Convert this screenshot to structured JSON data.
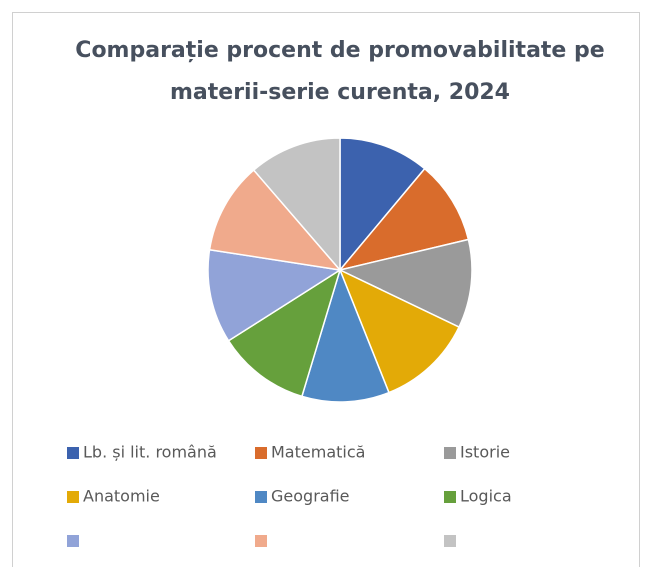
{
  "chart_data": {
    "type": "pie",
    "title": "Comparație procent de promovabilitate pe materii-serie curenta, 2024",
    "categories": [
      "Lb. și lit. română",
      "Matematică",
      "Istorie",
      "Anatomie",
      "Geografie",
      "Logica",
      null,
      null,
      null
    ],
    "values": [
      88,
      81,
      86,
      94,
      85,
      90,
      91,
      89,
      90
    ],
    "colors": [
      "#3c62ae",
      "#d96c2c",
      "#9a9a9a",
      "#e3aa07",
      "#4f88c4",
      "#66a03c",
      "#91a3d8",
      "#f0aa8c",
      "#c3c3c3"
    ],
    "legend": "bottom"
  }
}
